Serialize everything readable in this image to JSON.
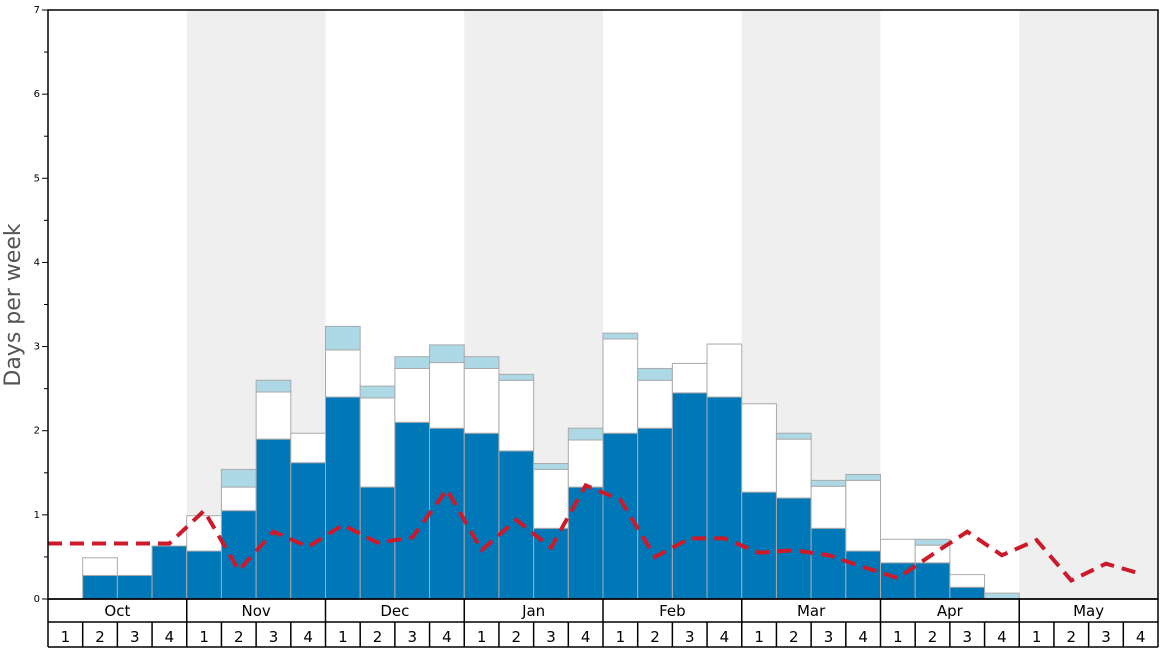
{
  "chart_data": {
    "type": "bar",
    "ylabel": "Days per week",
    "ylim": [
      0,
      7
    ],
    "yticks": [
      "0",
      "1",
      "2",
      "3",
      "4",
      "5",
      "6",
      "7"
    ],
    "months": [
      "Oct",
      "Nov",
      "Dec",
      "Jan",
      "Feb",
      "Mar",
      "Apr",
      "May"
    ],
    "weeks": [
      "1",
      "2",
      "3",
      "4"
    ],
    "colors": {
      "base": "#0077b6",
      "middle": "#ffffff",
      "top": "#add8e6",
      "line": "#cc1a2b",
      "shade": "#efefef",
      "bar_stroke": "#aaaaaa"
    },
    "series": [
      {
        "values": [
          0,
          0.28,
          0.28,
          0.63,
          0.57,
          1.05,
          1.9,
          1.62,
          2.4,
          1.33,
          2.1,
          2.03,
          1.97,
          1.76,
          0.84,
          1.33,
          1.97,
          2.03,
          2.45,
          2.4,
          1.27,
          1.2,
          0.84,
          0.57,
          0.43,
          0.43,
          0.14,
          0,
          0,
          0,
          0,
          0
        ]
      },
      {
        "values": [
          0,
          0.21,
          0,
          0,
          0.42,
          0.28,
          0.56,
          0.35,
          0.56,
          1.06,
          0.64,
          0.78,
          0.77,
          0.84,
          0.7,
          0.56,
          1.12,
          0.57,
          0.35,
          0.63,
          1.05,
          0.7,
          0.5,
          0.84,
          0.28,
          0.21,
          0.15,
          0,
          0,
          0,
          0,
          0
        ]
      },
      {
        "values": [
          0,
          0,
          0,
          0,
          0,
          0.21,
          0.14,
          0,
          0.28,
          0.14,
          0.14,
          0.21,
          0.14,
          0.07,
          0.07,
          0.14,
          0.07,
          0.14,
          0,
          0,
          0,
          0.07,
          0.07,
          0.07,
          0,
          0.07,
          0,
          0.07,
          0,
          0,
          0,
          0
        ]
      },
      {
        "values": [
          0.66,
          0.66,
          0.66,
          0.66,
          1.05,
          0.34,
          0.8,
          0.62,
          0.88,
          0.67,
          0.73,
          1.3,
          0.58,
          0.94,
          0.61,
          1.35,
          1.18,
          0.5,
          0.72,
          0.72,
          0.55,
          0.58,
          0.52,
          0.38,
          0.25,
          0.53,
          0.8,
          0.52,
          0.7,
          0.22,
          0.42,
          0.3
        ]
      }
    ]
  }
}
